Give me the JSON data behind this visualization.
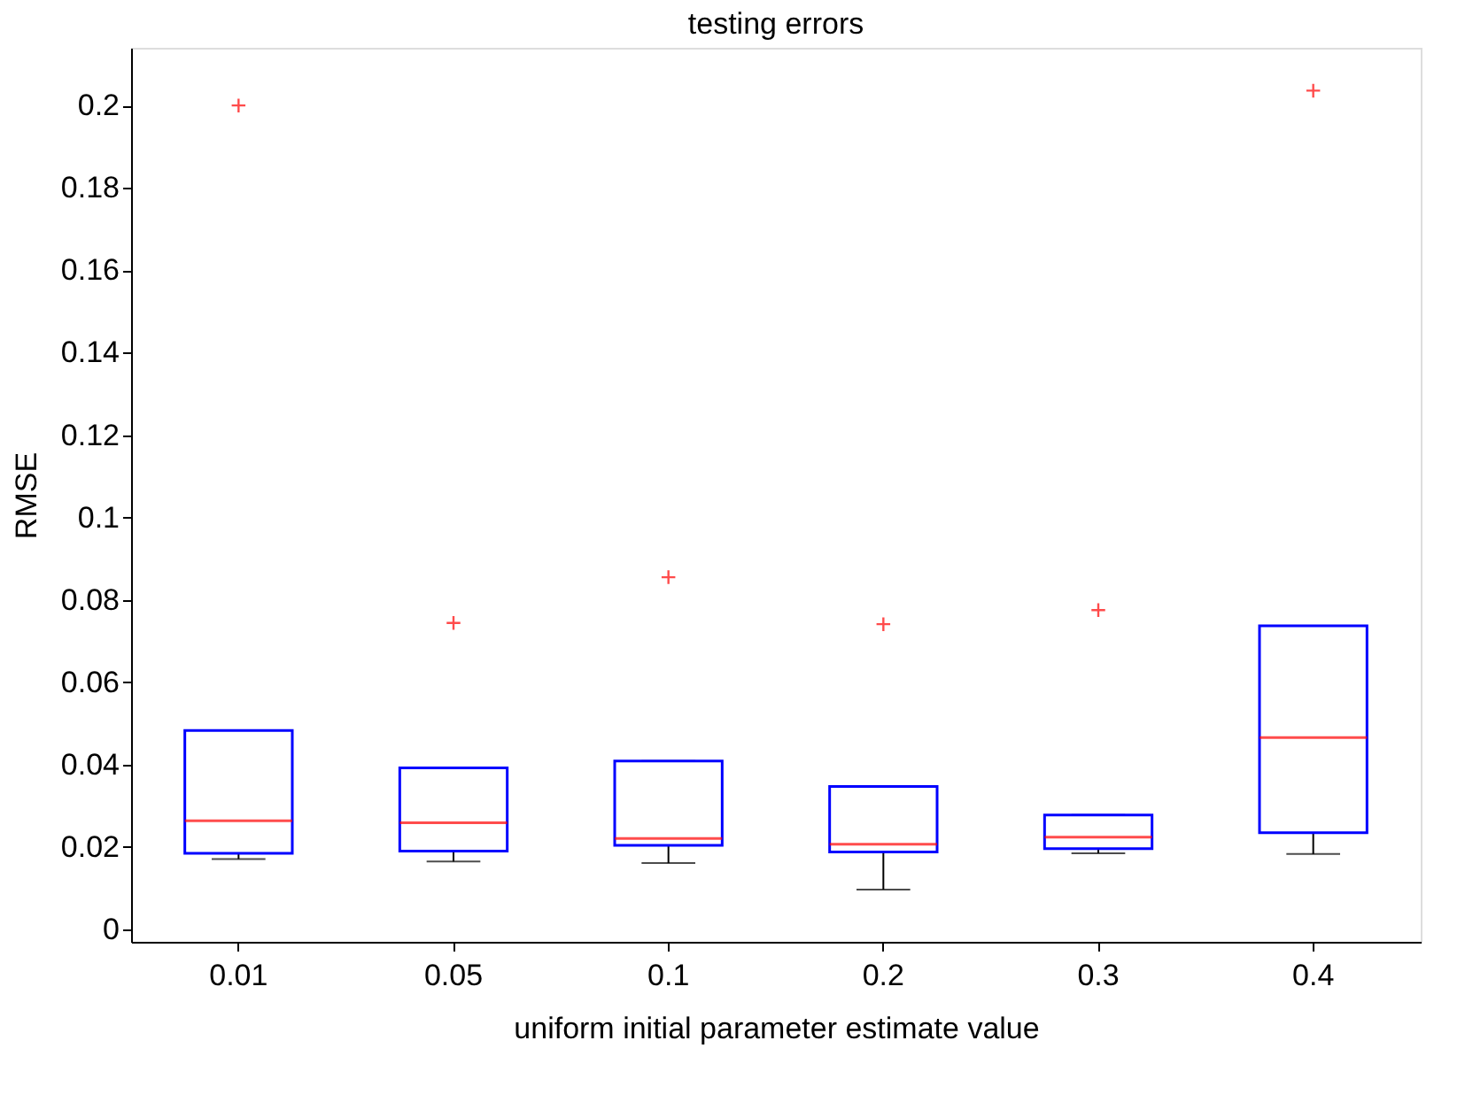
{
  "chart_data": {
    "type": "box",
    "title": "testing errors",
    "xlabel": "uniform initial parameter estimate value",
    "ylabel": "RMSE",
    "categories": [
      "0.01",
      "0.05",
      "0.1",
      "0.2",
      "0.3",
      "0.4"
    ],
    "ylim": [
      -0.003,
      0.214
    ],
    "yticks": [
      0,
      0.02,
      0.04,
      0.06,
      0.08,
      0.1,
      0.12,
      0.14,
      0.16,
      0.18,
      0.2
    ],
    "series": [
      {
        "color": "#0000ff",
        "boxes": [
          {
            "low": 0.0171,
            "q1": 0.0185,
            "median": 0.0264,
            "q3": 0.0483,
            "high": 0.0483,
            "outliers": [
              0.2
            ]
          },
          {
            "low": 0.0165,
            "q1": 0.019,
            "median": 0.0259,
            "q3": 0.0392,
            "high": 0.0392,
            "outliers": [
              0.0744
            ]
          },
          {
            "low": 0.0161,
            "q1": 0.0204,
            "median": 0.0221,
            "q3": 0.0409,
            "high": 0.0409,
            "outliers": [
              0.0855
            ]
          },
          {
            "low": 0.0097,
            "q1": 0.0188,
            "median": 0.0207,
            "q3": 0.0347,
            "high": 0.0347,
            "outliers": [
              0.0741
            ]
          },
          {
            "low": 0.0185,
            "q1": 0.0196,
            "median": 0.0224,
            "q3": 0.0278,
            "high": 0.0278,
            "outliers": [
              0.0775
            ]
          },
          {
            "low": 0.0183,
            "q1": 0.0235,
            "median": 0.0466,
            "q3": 0.0737,
            "high": 0.0737,
            "outliers": [
              0.2036
            ]
          }
        ]
      }
    ]
  }
}
